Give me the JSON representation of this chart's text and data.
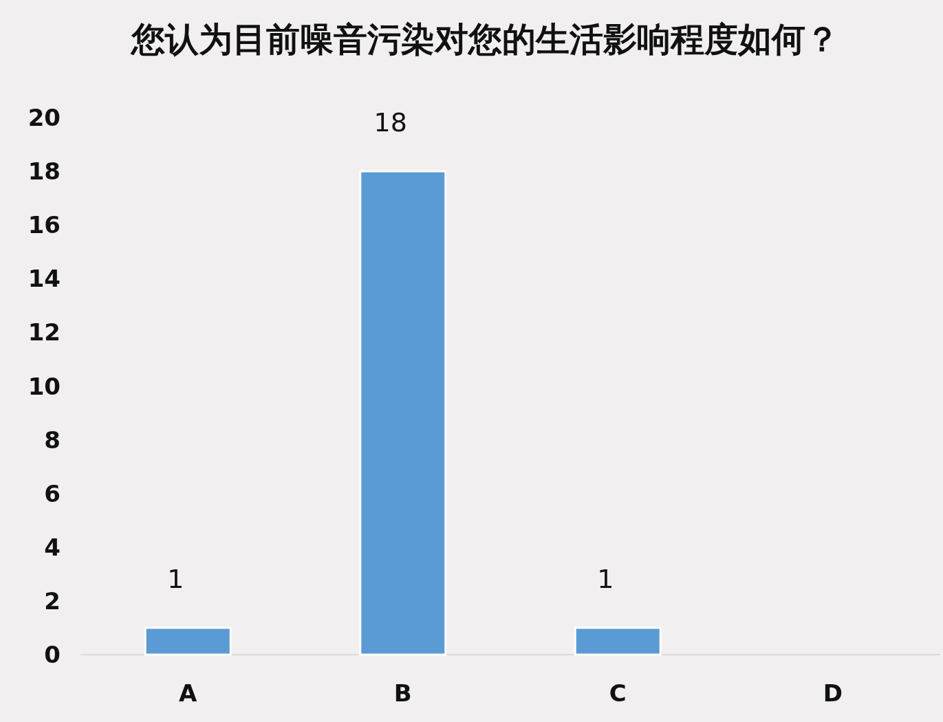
{
  "chart_data": {
    "type": "bar",
    "title": "您认为目前噪音污染对您的生活影响程度如何？",
    "categories": [
      "A",
      "B",
      "C",
      "D"
    ],
    "values": [
      1,
      18,
      1,
      0
    ],
    "value_labels": [
      "1",
      "18",
      "1",
      null
    ],
    "color": "#5b9bd5",
    "ylim": [
      0,
      20
    ],
    "yticks": [
      0,
      2,
      4,
      6,
      8,
      10,
      12,
      14,
      16,
      18,
      20
    ],
    "grid": false
  }
}
